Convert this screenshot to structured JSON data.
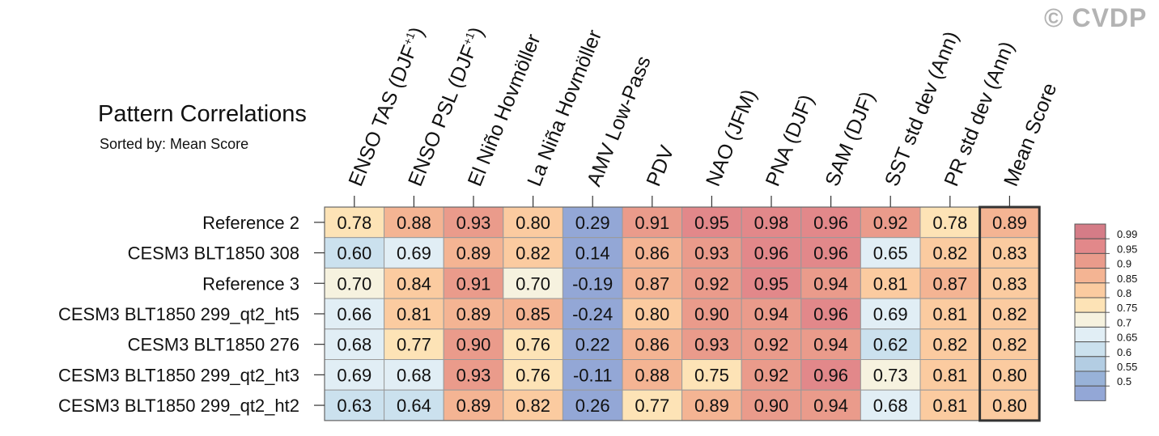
{
  "watermark": "© CVDP",
  "chart_data": {
    "type": "heatmap",
    "title": "Pattern Correlations",
    "subtitle": "Sorted by: Mean Score",
    "columns": [
      "ENSO TAS (DJF+1)",
      "ENSO PSL (DJF+1)",
      "El Niño Hovmöller",
      "La Niña Hovmöller",
      "AMV Low-Pass",
      "PDV",
      "NAO (JFM)",
      "PNA (DJF)",
      "SAM (DJF)",
      "SST std dev (Ann)",
      "PR std dev (Ann)",
      "Mean Score"
    ],
    "rows": [
      "Reference 2",
      "CESM3 BLT1850 308",
      "Reference 3",
      "CESM3 BLT1850 299_qt2_ht5",
      "CESM3 BLT1850 276",
      "CESM3 BLT1850 299_qt2_ht3",
      "CESM3 BLT1850 299_qt2_ht2"
    ],
    "values": [
      [
        "0.78",
        "0.88",
        "0.93",
        "0.80",
        "0.29",
        "0.91",
        "0.95",
        "0.98",
        "0.96",
        "0.92",
        "0.78",
        "0.89"
      ],
      [
        "0.60",
        "0.69",
        "0.89",
        "0.82",
        "0.14",
        "0.86",
        "0.93",
        "0.96",
        "0.96",
        "0.65",
        "0.82",
        "0.83"
      ],
      [
        "0.70",
        "0.84",
        "0.91",
        "0.70",
        "-0.19",
        "0.87",
        "0.92",
        "0.95",
        "0.94",
        "0.81",
        "0.87",
        "0.83"
      ],
      [
        "0.66",
        "0.81",
        "0.89",
        "0.85",
        "-0.24",
        "0.80",
        "0.90",
        "0.94",
        "0.96",
        "0.69",
        "0.81",
        "0.82"
      ],
      [
        "0.68",
        "0.77",
        "0.90",
        "0.76",
        "0.22",
        "0.86",
        "0.93",
        "0.92",
        "0.94",
        "0.62",
        "0.82",
        "0.82"
      ],
      [
        "0.69",
        "0.68",
        "0.93",
        "0.76",
        "-0.11",
        "0.88",
        "0.75",
        "0.92",
        "0.96",
        "0.73",
        "0.81",
        "0.80"
      ],
      [
        "0.63",
        "0.64",
        "0.89",
        "0.82",
        "0.26",
        "0.77",
        "0.89",
        "0.90",
        "0.94",
        "0.68",
        "0.81",
        "0.80"
      ]
    ],
    "colorbar": {
      "labels": [
        "0.99",
        "0.95",
        "0.9",
        "0.85",
        "0.8",
        "0.75",
        "0.7",
        "0.65",
        "0.6",
        "0.55",
        "0.5"
      ],
      "colors": [
        "#d57c87",
        "#e2888a",
        "#ea9b8b",
        "#f4b493",
        "#fbcba0",
        "#fde3b6",
        "#f6f2df",
        "#e1eef5",
        "#cbe1ee",
        "#b3cde3",
        "#98b2d8",
        "#93a7d6"
      ]
    }
  }
}
